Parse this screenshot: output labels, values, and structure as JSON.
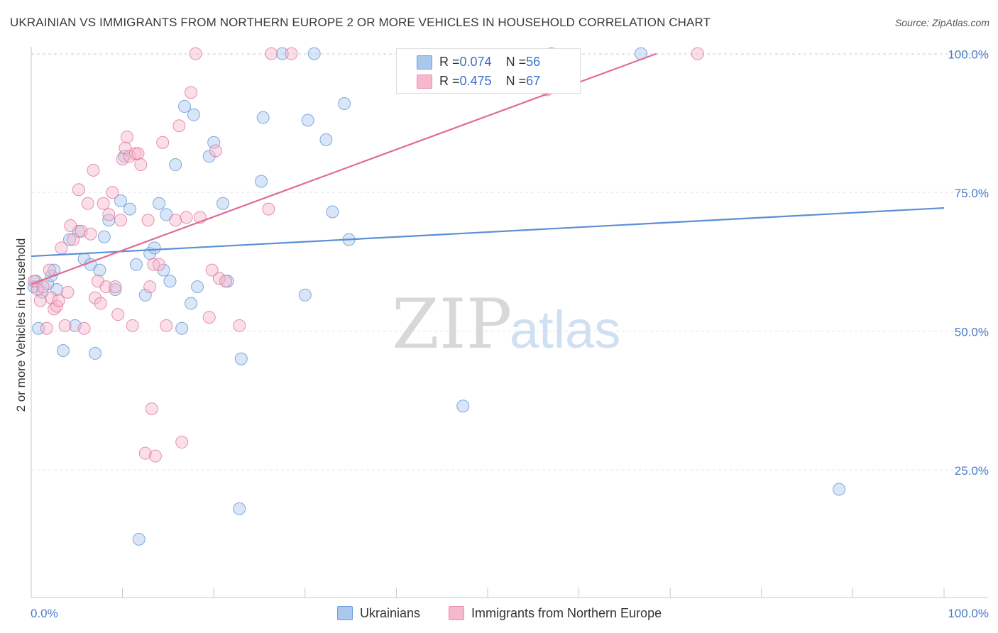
{
  "header": {
    "title": "UKRAINIAN VS IMMIGRANTS FROM NORTHERN EUROPE 2 OR MORE VEHICLES IN HOUSEHOLD CORRELATION CHART",
    "source": "Source: ZipAtlas.com"
  },
  "watermark": {
    "zip": "ZIP",
    "atlas": "atlas"
  },
  "legend": {
    "rows": [
      {
        "r_label": "R = ",
        "r_value": "0.074",
        "n_label": "N = ",
        "n_value": "56",
        "color": "#aac8ee"
      },
      {
        "r_label": "R = ",
        "r_value": "0.475",
        "n_label": "N = ",
        "n_value": "67",
        "color": "#f7b8cb"
      }
    ]
  },
  "bottom_legend": {
    "items": [
      {
        "label": "Ukrainians",
        "color": "#aac8ee"
      },
      {
        "label": "Immigrants from Northern Europe",
        "color": "#f7b8cb"
      }
    ]
  },
  "chart_data": {
    "type": "scatter",
    "title": "UKRAINIAN VS IMMIGRANTS FROM NORTHERN EUROPE 2 OR MORE VEHICLES IN HOUSEHOLD CORRELATION CHART",
    "xlabel": "",
    "ylabel": "2 or more Vehicles in Household",
    "xlim": [
      0,
      100
    ],
    "ylim": [
      2,
      102
    ],
    "x_tick_labels": [
      {
        "value": 0,
        "label": "0.0%"
      },
      {
        "value": 100,
        "label": "100.0%"
      }
    ],
    "y_tick_labels": [
      {
        "value": 25,
        "label": "25.0%"
      },
      {
        "value": 50,
        "label": "50.0%"
      },
      {
        "value": 75,
        "label": "75.0%"
      },
      {
        "value": 100,
        "label": "100.0%"
      }
    ],
    "grid": true,
    "series": [
      {
        "name": "Ukrainians",
        "color": "#5b8fd6",
        "fill": "#aac8ee",
        "r": 0.074,
        "n": 56,
        "trend": {
          "x": [
            0,
            100
          ],
          "y": [
            63.5,
            72.2
          ]
        },
        "points": [
          [
            0.3,
            58
          ],
          [
            0.5,
            59
          ],
          [
            0.8,
            50.5
          ],
          [
            1.2,
            57
          ],
          [
            1.8,
            58.5
          ],
          [
            2.2,
            60
          ],
          [
            2.5,
            61
          ],
          [
            2.8,
            57.5
          ],
          [
            3.5,
            46.5
          ],
          [
            4.2,
            66.5
          ],
          [
            4.8,
            51
          ],
          [
            5.2,
            68
          ],
          [
            5.8,
            63
          ],
          [
            6.5,
            62
          ],
          [
            7.0,
            46
          ],
          [
            7.5,
            61
          ],
          [
            8.0,
            67
          ],
          [
            8.5,
            70
          ],
          [
            9.2,
            57.5
          ],
          [
            9.8,
            73.5
          ],
          [
            10.2,
            81.5
          ],
          [
            10.8,
            72
          ],
          [
            11.5,
            62
          ],
          [
            11.8,
            12.5
          ],
          [
            12.5,
            56.5
          ],
          [
            13.0,
            64
          ],
          [
            13.5,
            65
          ],
          [
            14.0,
            73
          ],
          [
            14.5,
            61
          ],
          [
            14.8,
            71
          ],
          [
            15.2,
            59
          ],
          [
            15.8,
            80
          ],
          [
            16.5,
            50.5
          ],
          [
            16.8,
            90.5
          ],
          [
            17.5,
            55
          ],
          [
            17.8,
            89
          ],
          [
            18.2,
            58
          ],
          [
            19.5,
            81.5
          ],
          [
            20.0,
            84
          ],
          [
            21.0,
            73
          ],
          [
            21.5,
            59
          ],
          [
            22.8,
            18
          ],
          [
            23.0,
            45
          ],
          [
            25.2,
            77
          ],
          [
            25.4,
            88.5
          ],
          [
            27.5,
            100
          ],
          [
            30.0,
            56.5
          ],
          [
            30.3,
            88
          ],
          [
            31.0,
            100
          ],
          [
            32.3,
            84.5
          ],
          [
            33.0,
            71.5
          ],
          [
            34.3,
            91
          ],
          [
            34.8,
            66.5
          ],
          [
            47.3,
            36.5
          ],
          [
            66.8,
            100
          ],
          [
            88.5,
            21.5
          ]
        ]
      },
      {
        "name": "Immigrants from Northern Europe",
        "color": "#e06c95",
        "fill": "#f7b8cb",
        "r": 0.475,
        "n": 67,
        "trend": {
          "x": [
            0,
            68.5
          ],
          "y": [
            58.5,
            100
          ]
        },
        "points": [
          [
            0.3,
            59
          ],
          [
            0.7,
            57.5
          ],
          [
            1.0,
            55.5
          ],
          [
            1.3,
            58
          ],
          [
            1.7,
            50.5
          ],
          [
            2.0,
            61
          ],
          [
            2.2,
            56
          ],
          [
            2.5,
            54
          ],
          [
            2.8,
            54.5
          ],
          [
            3.0,
            55.5
          ],
          [
            3.3,
            65
          ],
          [
            3.7,
            51
          ],
          [
            4.0,
            57
          ],
          [
            4.3,
            69
          ],
          [
            4.6,
            66.5
          ],
          [
            5.2,
            75.5
          ],
          [
            5.5,
            68
          ],
          [
            5.8,
            50.5
          ],
          [
            6.2,
            73
          ],
          [
            6.5,
            67.5
          ],
          [
            6.8,
            79
          ],
          [
            7.0,
            56
          ],
          [
            7.3,
            59
          ],
          [
            7.6,
            55
          ],
          [
            7.9,
            73
          ],
          [
            8.2,
            58
          ],
          [
            8.5,
            71
          ],
          [
            8.9,
            75
          ],
          [
            9.2,
            58
          ],
          [
            9.5,
            53
          ],
          [
            9.8,
            70
          ],
          [
            10.0,
            81
          ],
          [
            10.3,
            83
          ],
          [
            10.5,
            85
          ],
          [
            10.8,
            81.5
          ],
          [
            11.1,
            51
          ],
          [
            11.4,
            82
          ],
          [
            11.7,
            82
          ],
          [
            12.0,
            80
          ],
          [
            12.5,
            28
          ],
          [
            12.8,
            70
          ],
          [
            13.0,
            58
          ],
          [
            13.2,
            36
          ],
          [
            13.4,
            62
          ],
          [
            13.6,
            27.5
          ],
          [
            14.0,
            62
          ],
          [
            14.4,
            84
          ],
          [
            14.8,
            51
          ],
          [
            15.8,
            70
          ],
          [
            16.2,
            87
          ],
          [
            17.0,
            70.5
          ],
          [
            17.5,
            93
          ],
          [
            18.5,
            70.5
          ],
          [
            19.5,
            52.5
          ],
          [
            20.2,
            82.5
          ],
          [
            20.6,
            59.5
          ],
          [
            21.3,
            59
          ],
          [
            16.5,
            30
          ],
          [
            22.8,
            51
          ],
          [
            26.0,
            72
          ],
          [
            18.0,
            100
          ],
          [
            26.3,
            100
          ],
          [
            28.5,
            100
          ],
          [
            56.5,
            93.5
          ],
          [
            57.0,
            100
          ],
          [
            73.0,
            100
          ],
          [
            19.8,
            61
          ]
        ]
      }
    ]
  }
}
